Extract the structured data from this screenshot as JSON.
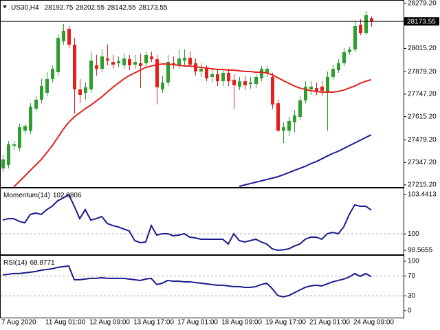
{
  "chart_data": [
    {
      "type": "candlestick",
      "symbol": "US30,H4",
      "categories": [
        "7 Aug 2020",
        null,
        null,
        null,
        null,
        null,
        null,
        null,
        "11 Aug 01:00",
        null,
        null,
        null,
        null,
        null,
        null,
        null,
        "12 Aug 09:00",
        null,
        null,
        null,
        null,
        null,
        null,
        null,
        "13 Aug 17:00",
        null,
        null,
        null,
        null,
        null,
        null,
        null,
        "17 Aug 01:00",
        null,
        null,
        null,
        null,
        null,
        null,
        null,
        "18 Aug 09:00",
        null,
        null,
        null,
        null,
        null,
        null,
        null,
        "19 Aug 17:00",
        null,
        null,
        null,
        null,
        null,
        null,
        null,
        "21 Aug 01:00",
        null,
        null,
        null,
        null,
        null,
        null,
        null,
        "24 Aug 09:00",
        null,
        null,
        null
      ],
      "open": [
        27312,
        27332,
        27445,
        27433,
        27533,
        27533,
        27662,
        27715,
        27755,
        27836,
        27876,
        28057,
        28130,
        28037,
        27775,
        27755,
        27775,
        27916,
        27896,
        27956,
        27936,
        27928,
        27916,
        27952,
        27920,
        27928,
        27928,
        27968,
        27952,
        27775,
        27815,
        27928,
        27916,
        27944,
        27960,
        27928,
        27880,
        27896,
        27848,
        27864,
        27823,
        27872,
        27831,
        27791,
        27823,
        27807,
        27807,
        27840,
        27872,
        27848,
        27694,
        27533,
        27533,
        27582,
        27614,
        27711,
        27775,
        27783,
        27791,
        27759,
        27848,
        27888,
        27928,
        27993,
        28009,
        28154,
        28105,
        28192.75
      ],
      "high": [
        27392,
        27473,
        27473,
        27574,
        27574,
        27694,
        27735,
        27836,
        27876,
        27916,
        28098,
        28158,
        28146,
        28077,
        27836,
        27815,
        27997,
        27977,
        28009,
        28037,
        27977,
        27968,
        27985,
        27977,
        27977,
        27985,
        27997,
        27997,
        27977,
        27856,
        27977,
        27968,
        28009,
        28009,
        27997,
        27956,
        27928,
        27916,
        27896,
        27888,
        27896,
        27896,
        27864,
        27848,
        27856,
        27848,
        27864,
        27912,
        27912,
        27872,
        27715,
        27582,
        27614,
        27654,
        27735,
        27823,
        27823,
        27815,
        27823,
        27880,
        27920,
        27952,
        28017,
        28025,
        28178,
        28186,
        28234,
        28202.55
      ],
      "low": [
        27292,
        27312,
        27420,
        27412,
        27513,
        27513,
        27646,
        27694,
        27735,
        27815,
        27856,
        28037,
        28017,
        27634,
        27694,
        27715,
        27755,
        27856,
        27876,
        27916,
        27896,
        27904,
        27896,
        27888,
        27896,
        27783,
        27912,
        27936,
        27686,
        27755,
        27795,
        27896,
        27896,
        27916,
        27904,
        27856,
        27848,
        27823,
        27815,
        27795,
        27795,
        27795,
        27662,
        27771,
        27771,
        27779,
        27783,
        27823,
        27848,
        27662,
        27525,
        27461,
        27501,
        27525,
        27594,
        27694,
        27743,
        27743,
        27735,
        27533,
        27831,
        27872,
        27912,
        27977,
        27993,
        28093,
        28093,
        28142.55
      ],
      "close": [
        27364,
        27453,
        27453,
        27553,
        27561,
        27674,
        27715,
        27795,
        27836,
        27896,
        28077,
        28118,
        28037,
        27775,
        27743,
        27787,
        27944,
        27896,
        27968,
        27944,
        27920,
        27940,
        27956,
        27916,
        27936,
        27912,
        27977,
        27952,
        27787,
        27815,
        27936,
        27920,
        27956,
        27960,
        27920,
        27880,
        27896,
        27840,
        27864,
        27823,
        27872,
        27823,
        27799,
        27823,
        27799,
        27815,
        27848,
        27896,
        27896,
        27686,
        27533,
        27553,
        27590,
        27622,
        27711,
        27791,
        27791,
        27767,
        27767,
        27848,
        27896,
        27928,
        27993,
        28009,
        28146,
        28105,
        28210,
        28173.55
      ],
      "up_color": "#2e9e2e",
      "down_color": "#e3201b",
      "lines": [
        {
          "color": "#e3201b",
          "values": [
            null,
            null,
            27203,
            27235,
            27267,
            27300,
            27332,
            27364,
            27404,
            27445,
            27493,
            27541,
            27582,
            27614,
            27638,
            27662,
            27682,
            27707,
            27731,
            27759,
            27787,
            27811,
            27836,
            27856,
            27872,
            27888,
            27904,
            27912,
            27920,
            27924,
            27924,
            27920,
            27916,
            27912,
            27912,
            27908,
            27904,
            27900,
            27896,
            27892,
            27892,
            27888,
            27888,
            27884,
            27880,
            27880,
            27876,
            27876,
            27872,
            27860,
            27844,
            27827,
            27811,
            27795,
            27783,
            27775,
            27767,
            27763,
            27759,
            27759,
            27759,
            27763,
            27771,
            27783,
            27795,
            27811,
            27823,
            27832
          ]
        },
        {
          "color": "#1c1c96",
          "values": [
            null,
            null,
            null,
            null,
            null,
            null,
            null,
            null,
            null,
            null,
            null,
            null,
            null,
            null,
            null,
            null,
            null,
            null,
            null,
            null,
            null,
            null,
            null,
            null,
            null,
            null,
            null,
            null,
            null,
            null,
            null,
            null,
            null,
            null,
            null,
            null,
            null,
            null,
            null,
            null,
            null,
            null,
            null,
            27207,
            27215,
            27223,
            27231,
            27239,
            27247,
            27255,
            27263,
            27275,
            27287,
            27300,
            27312,
            27324,
            27340,
            27352,
            27368,
            27384,
            27400,
            27412,
            27429,
            27445,
            27461,
            27477,
            27493,
            27509
          ]
        }
      ],
      "price_line": true,
      "ylim": [
        27203,
        28295
      ],
      "yticks": [
        {
          "value": 28279.2,
          "label": "28279.20"
        },
        {
          "value": 28015.2,
          "label": "28015.20"
        },
        {
          "value": 27879.2,
          "label": "27879.20"
        },
        {
          "value": 27747.2,
          "label": "27747.20"
        },
        {
          "value": 27615.2,
          "label": "27615.20"
        },
        {
          "value": 27479.2,
          "label": "27479.20"
        },
        {
          "value": 27347.2,
          "label": "27347.20"
        },
        {
          "value": 27215.2,
          "label": "27215.20"
        }
      ]
    },
    {
      "type": "line",
      "name": "Momentum(14)",
      "color": "#1a1a8c",
      "values": [
        101.21,
        101.33,
        101.33,
        101.09,
        100.97,
        101.7,
        101.82,
        101.7,
        102.12,
        102.42,
        102.9,
        103.14,
        103.4413,
        102.42,
        101.33,
        102.12,
        101.21,
        101.33,
        101.52,
        100.91,
        100.73,
        100.61,
        100.43,
        100.25,
        99.41,
        99.23,
        99.29,
        100.73,
        99.89,
        100.01,
        100.01,
        99.83,
        99.89,
        100.01,
        99.71,
        99.65,
        99.53,
        99.53,
        99.53,
        99.53,
        99.53,
        99.11,
        100.01,
        99.41,
        99.29,
        99.41,
        99.53,
        99.29,
        99.11,
        98.69,
        98.5655,
        98.6,
        98.69,
        98.93,
        99.11,
        99.53,
        99.71,
        99.71,
        99.53,
        100.01,
        100.13,
        100.01,
        100.61,
        101.7,
        102.54,
        102.42,
        102.42,
        102.0806
      ],
      "levels": [
        100
      ],
      "ylim": [
        98.204,
        103.983
      ],
      "yticks": [
        103.4413,
        100,
        98.5655
      ]
    },
    {
      "type": "line",
      "name": "RSI(14)",
      "color": "#1a1a8c",
      "values": [
        72.2,
        73.6,
        75.0,
        75.0,
        76.4,
        77.8,
        79.2,
        81.9,
        83.3,
        84.7,
        87.5,
        88.9,
        90.3,
        62.5,
        62.5,
        63.9,
        65.3,
        65.3,
        66.7,
        65.3,
        65.3,
        65.3,
        65.3,
        63.9,
        62.5,
        61.1,
        63.9,
        65.3,
        52.8,
        55.6,
        61.1,
        59.7,
        59.7,
        58.3,
        58.3,
        56.9,
        55.6,
        54.2,
        52.8,
        51.4,
        51.4,
        50.0,
        48.6,
        48.6,
        47.2,
        47.2,
        48.6,
        52.8,
        55.6,
        44.4,
        30.6,
        27.8,
        30.6,
        36.1,
        41.7,
        47.2,
        50.0,
        51.4,
        50.0,
        54.2,
        58.3,
        61.1,
        63.9,
        68.1,
        75.0,
        69.4,
        75.0,
        68.8771
      ],
      "levels": [
        70,
        30
      ],
      "ylim": [
        -14,
        111
      ],
      "yticks": [
        100,
        70,
        30,
        0
      ]
    }
  ]
}
